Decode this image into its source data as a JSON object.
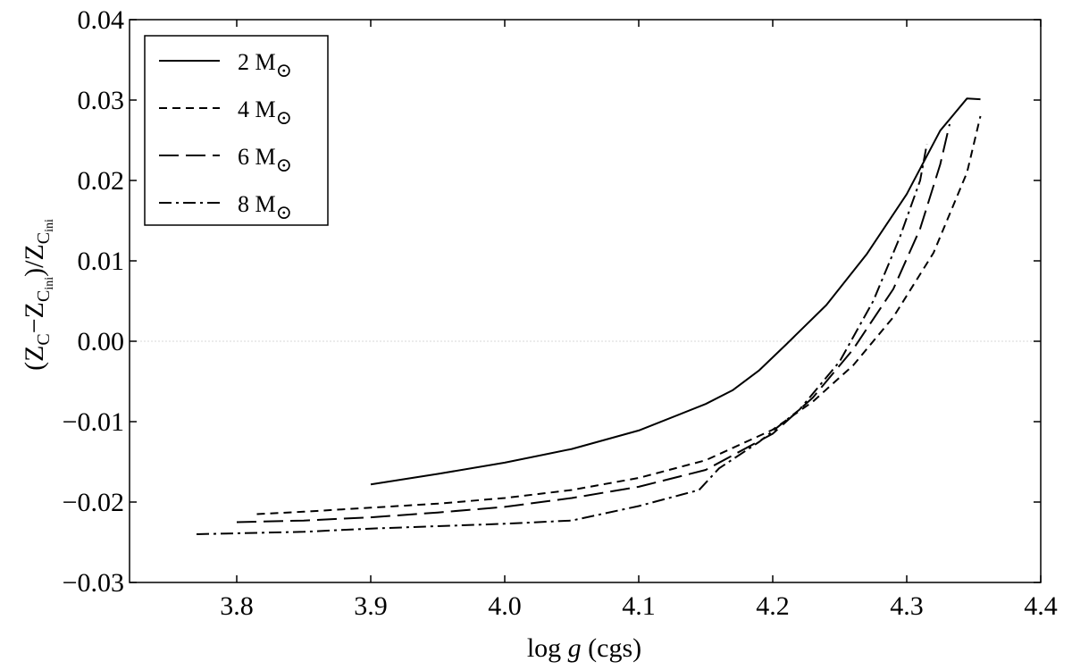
{
  "chart_data": {
    "type": "line",
    "title": "",
    "xlabel_text": "log ",
    "xlabel_var": "g",
    "xlabel_unit": " (cgs)",
    "ylabel": {
      "open": "(Z",
      "sub_c": "C",
      "minus": "−Z",
      "sub_cini1": "C",
      "sub_ini1": "ini",
      "close": ")/Z",
      "sub_cini2": "C",
      "sub_ini2": "ini"
    },
    "xlim": [
      3.72,
      4.4
    ],
    "ylim": [
      -0.03,
      0.04
    ],
    "xticks": [
      3.8,
      3.9,
      4.0,
      4.1,
      4.2,
      4.3,
      4.4
    ],
    "xtick_labels": [
      "3.8",
      "3.9",
      "4.0",
      "4.1",
      "4.2",
      "4.3",
      "4.4"
    ],
    "yticks": [
      -0.03,
      -0.02,
      -0.01,
      0.0,
      0.01,
      0.02,
      0.03,
      0.04
    ],
    "ytick_labels": [
      "−0.03",
      "−0.02",
      "−0.01",
      "0.00",
      "0.01",
      "0.02",
      "0.03",
      "0.04"
    ],
    "reference_line_y": 0.0,
    "grid": false,
    "legend_position": "top-left",
    "series": [
      {
        "name": "2 M",
        "dash": "solid",
        "x": [
          3.9,
          3.95,
          4.0,
          4.05,
          4.1,
          4.15,
          4.17,
          4.19,
          4.21,
          4.24,
          4.27,
          4.3,
          4.325,
          4.345,
          4.355
        ],
        "y": [
          -0.0178,
          -0.0165,
          -0.0151,
          -0.0134,
          -0.0111,
          -0.0078,
          -0.0061,
          -0.0036,
          -0.0004,
          0.0045,
          0.0108,
          0.0183,
          0.0262,
          0.0302,
          0.0301
        ]
      },
      {
        "name": "4 M",
        "dash": "short",
        "x": [
          3.815,
          3.85,
          3.9,
          3.95,
          4.0,
          4.05,
          4.1,
          4.15,
          4.2,
          4.23,
          4.26,
          4.29,
          4.32,
          4.345,
          4.355
        ],
        "y": [
          -0.0215,
          -0.0212,
          -0.0207,
          -0.0202,
          -0.0195,
          -0.0185,
          -0.017,
          -0.0148,
          -0.011,
          -0.0075,
          -0.003,
          0.003,
          0.011,
          0.021,
          0.028
        ]
      },
      {
        "name": "6 M",
        "dash": "long",
        "x": [
          3.8,
          3.85,
          3.9,
          3.95,
          4.0,
          4.05,
          4.1,
          4.15,
          4.2,
          4.23,
          4.26,
          4.29,
          4.31,
          4.325,
          4.332
        ],
        "y": [
          -0.0225,
          -0.0223,
          -0.0219,
          -0.0213,
          -0.0206,
          -0.0195,
          -0.0181,
          -0.016,
          -0.0115,
          -0.007,
          -0.001,
          0.0065,
          0.014,
          0.022,
          0.027
        ]
      },
      {
        "name": "8 M",
        "dash": "dashdot",
        "x": [
          3.77,
          3.85,
          3.9,
          3.95,
          4.0,
          4.05,
          4.1,
          4.145,
          4.16,
          4.19,
          4.22,
          4.25,
          4.275,
          4.295,
          4.31,
          4.315
        ],
        "y": [
          -0.024,
          -0.0237,
          -0.0233,
          -0.023,
          -0.0227,
          -0.0223,
          -0.0205,
          -0.0185,
          -0.0158,
          -0.0125,
          -0.0085,
          -0.0025,
          0.005,
          0.013,
          0.02,
          0.0245
        ]
      }
    ],
    "legend_symbol": "⊙"
  }
}
